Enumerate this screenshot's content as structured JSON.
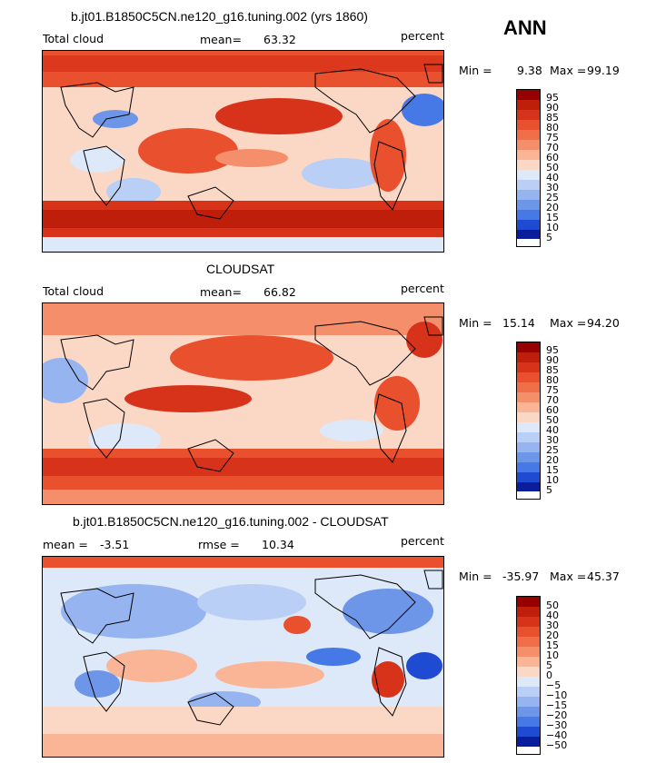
{
  "season": "ANN",
  "panels": [
    {
      "title": "b.jt01.B1850C5CN.ne120_g16.tuning.002 (yrs 1860)",
      "left_label": "Total cloud",
      "mean_label": "mean=",
      "mean_value": "63.32",
      "units": "percent",
      "min_label": "Min =",
      "min_value": "9.38",
      "max_label": "Max =",
      "max_value": "99.19",
      "levels": [
        "95",
        "90",
        "85",
        "80",
        "75",
        "70",
        "60",
        "50",
        "40",
        "30",
        "25",
        "20",
        "15",
        "10",
        "5"
      ]
    },
    {
      "title": "CLOUDSAT",
      "left_label": "Total cloud",
      "mean_label": "mean=",
      "mean_value": "66.82",
      "units": "percent",
      "min_label": "Min =",
      "min_value": "15.14",
      "max_label": "Max =",
      "max_value": "94.20",
      "levels": [
        "95",
        "90",
        "85",
        "80",
        "75",
        "70",
        "60",
        "50",
        "40",
        "30",
        "25",
        "20",
        "15",
        "10",
        "5"
      ]
    },
    {
      "title": "b.jt01.B1850C5CN.ne120_g16.tuning.002 - CLOUDSAT",
      "left_label": "mean =",
      "left_value": "-3.51",
      "rmse_label": "rmse =",
      "rmse_value": "10.34",
      "units": "percent",
      "min_label": "Min =",
      "min_value": "-35.97",
      "max_label": "Max =",
      "max_value": "45.37",
      "levels": [
        "50",
        "40",
        "30",
        "20",
        "15",
        "10",
        "5",
        "0",
        "−5",
        "−10",
        "−15",
        "−20",
        "−30",
        "−40",
        "−50"
      ]
    }
  ],
  "colors": {
    "red_scale": [
      "#960000",
      "#be1e0a",
      "#d7321a",
      "#e8502e",
      "#f06e48",
      "#f58e6a",
      "#fab496",
      "#fbd8c6",
      "#dde8f8",
      "#b9cff5",
      "#96b4f0",
      "#6e96e8",
      "#4678e6",
      "#1e4bd2",
      "#0a1e9b",
      "#00006e"
    ]
  }
}
